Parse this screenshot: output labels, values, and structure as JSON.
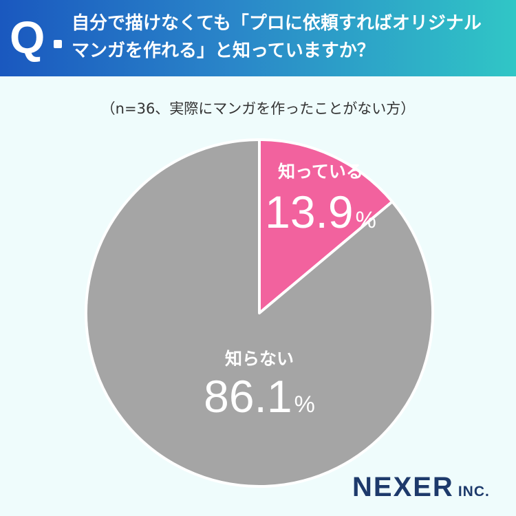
{
  "header": {
    "q_mark": "Q",
    "question_line1": "自分で描けなくても「プロに依頼すればオリジナル",
    "question_line2": "マンガを作れる」と知っていますか？"
  },
  "sample_note": "（n=36、実際にマンガを作ったことがない方）",
  "chart_data": {
    "type": "pie",
    "title": "",
    "start_angle_deg": 0,
    "direction": "clockwise",
    "slices": [
      {
        "label": "知っている",
        "value": 13.9,
        "value_text": "13.9",
        "unit": "%",
        "color": "#f2629e"
      },
      {
        "label": "知らない",
        "value": 86.1,
        "value_text": "86.1",
        "unit": "%",
        "color": "#a5a5a5"
      }
    ]
  },
  "colors": {
    "header_start": "#1a58bf",
    "header_end": "#30c6c6",
    "background": "#effcfc",
    "brand": "#1d3a6b"
  },
  "brand": {
    "name": "NEXER",
    "suffix": "INC."
  }
}
